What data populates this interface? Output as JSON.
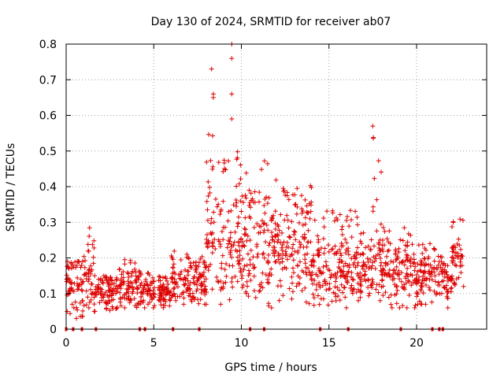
{
  "chart_data": {
    "type": "scatter",
    "title": "Day 130 of 2024, SRMTID for receiver ab07",
    "xlabel": "GPS time / hours",
    "ylabel": "SRMTID / TECUs",
    "xlim": [
      0,
      24
    ],
    "ylim": [
      0,
      0.8
    ],
    "xticks": [
      0,
      5,
      10,
      15,
      20
    ],
    "yticks": [
      0,
      0.1,
      0.2,
      0.3,
      0.4,
      0.5,
      0.6,
      0.7,
      0.8
    ],
    "xtick_labels": [
      "0",
      "5",
      "10",
      "15",
      "20"
    ],
    "ytick_labels": [
      "0",
      "0.1",
      "0.2",
      "0.3",
      "0.4",
      "0.5",
      "0.6",
      "0.7",
      "0.8"
    ],
    "grid": true,
    "marker": "+",
    "color": "#dd0000",
    "x_range_of_data": [
      0,
      22.7
    ],
    "series": [
      {
        "name": "SRMTID",
        "segments": [
          {
            "x0": 0.0,
            "x1": 1.0,
            "median": 0.12,
            "min": 0.03,
            "max": 0.19
          },
          {
            "x0": 1.0,
            "x1": 1.6,
            "median": 0.14,
            "min": 0.06,
            "max": 0.29
          },
          {
            "x0": 1.6,
            "x1": 3.0,
            "median": 0.1,
            "min": 0.05,
            "max": 0.15
          },
          {
            "x0": 3.0,
            "x1": 4.2,
            "median": 0.11,
            "min": 0.06,
            "max": 0.2
          },
          {
            "x0": 4.2,
            "x1": 6.0,
            "median": 0.1,
            "min": 0.06,
            "max": 0.16
          },
          {
            "x0": 6.0,
            "x1": 8.0,
            "median": 0.13,
            "min": 0.07,
            "max": 0.22
          },
          {
            "x0": 8.0,
            "x1": 9.0,
            "median": 0.22,
            "min": 0.07,
            "max": 0.55
          },
          {
            "x0": 9.0,
            "x1": 10.0,
            "median": 0.22,
            "min": 0.08,
            "max": 0.5
          },
          {
            "x0": 10.0,
            "x1": 12.0,
            "median": 0.22,
            "min": 0.06,
            "max": 0.48
          },
          {
            "x0": 12.0,
            "x1": 14.0,
            "median": 0.22,
            "min": 0.07,
            "max": 0.41
          },
          {
            "x0": 14.0,
            "x1": 16.0,
            "median": 0.16,
            "min": 0.06,
            "max": 0.34
          },
          {
            "x0": 16.0,
            "x1": 17.5,
            "median": 0.16,
            "min": 0.08,
            "max": 0.37
          },
          {
            "x0": 17.5,
            "x1": 18.0,
            "median": 0.2,
            "min": 0.08,
            "max": 0.56
          },
          {
            "x0": 18.0,
            "x1": 20.0,
            "median": 0.15,
            "min": 0.06,
            "max": 0.29
          },
          {
            "x0": 20.0,
            "x1": 21.5,
            "median": 0.15,
            "min": 0.07,
            "max": 0.24
          },
          {
            "x0": 21.5,
            "x1": 22.0,
            "median": 0.11,
            "min": 0.06,
            "max": 0.2
          },
          {
            "x0": 22.0,
            "x1": 22.7,
            "median": 0.18,
            "min": 0.12,
            "max": 0.31
          }
        ],
        "spikes": [
          {
            "x": 8.3,
            "y": 0.73
          },
          {
            "x": 8.4,
            "y": 0.66
          },
          {
            "x": 8.4,
            "y": 0.65
          },
          {
            "x": 9.45,
            "y": 0.8
          },
          {
            "x": 9.45,
            "y": 0.76
          },
          {
            "x": 9.45,
            "y": 0.66
          },
          {
            "x": 9.45,
            "y": 0.59
          },
          {
            "x": 17.5,
            "y": 0.57
          }
        ]
      }
    ],
    "gap_markers_x": [
      0.0,
      0.4,
      0.9,
      1.7,
      4.2,
      4.5,
      6.1,
      7.6,
      10.5,
      11.3,
      14.5,
      16.1,
      19.1,
      20.9,
      21.3,
      21.5
    ]
  }
}
